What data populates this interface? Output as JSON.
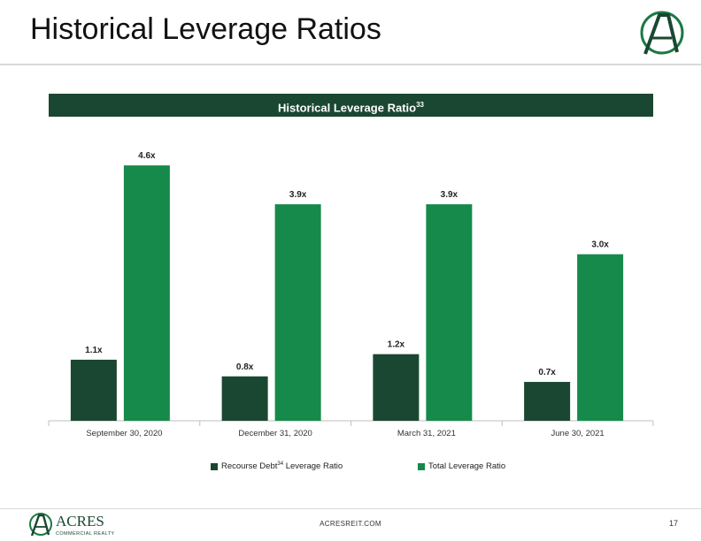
{
  "slide": {
    "title": "Historical Leverage Ratios",
    "banner_text": "Historical Leverage Ratio",
    "banner_sup": "33",
    "footer_url": "ACRESREIT.COM",
    "page_number": "17"
  },
  "brand": {
    "logo_letter": "A",
    "logo_word": "ACRES",
    "logo_sub": "COMMERCIAL REALTY"
  },
  "legend": {
    "recourse_label_pre": "Recourse Debt",
    "recourse_sup": "34",
    "recourse_label_post": " Leverage Ratio",
    "total_label": "Total Leverage Ratio"
  },
  "colors": {
    "recourse": "#1a4731",
    "total": "#168a4a",
    "banner": "#1a4731"
  },
  "chart_data": {
    "type": "bar",
    "categories": [
      "September 30, 2020",
      "December 31, 2020",
      "March 31, 2021",
      "June 30, 2021"
    ],
    "series": [
      {
        "name": "Recourse Debt34 Leverage Ratio",
        "values": [
          1.1,
          0.8,
          1.2,
          0.7
        ],
        "labels": [
          "1.1x",
          "0.8x",
          "1.2x",
          "0.7x"
        ]
      },
      {
        "name": "Total Leverage Ratio",
        "values": [
          4.6,
          3.9,
          3.9,
          3.0
        ],
        "labels": [
          "4.6x",
          "3.9x",
          "3.9x",
          "3.0x"
        ]
      }
    ],
    "title": "Historical Leverage Ratio33",
    "xlabel": "",
    "ylabel": "",
    "ylim": [
      0,
      5.0
    ],
    "grid": false,
    "legend_position": "bottom"
  }
}
